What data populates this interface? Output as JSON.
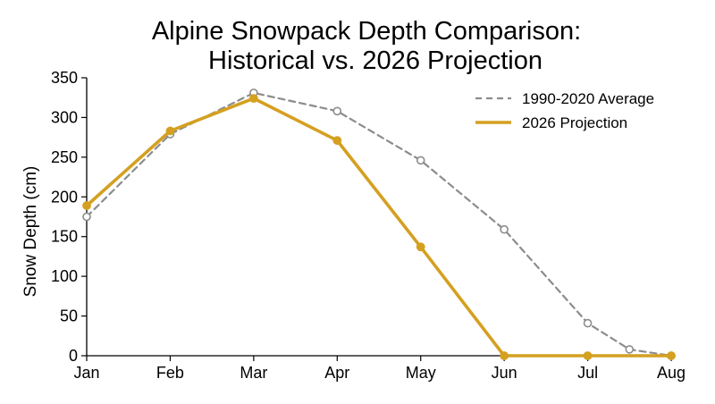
{
  "chart_data": {
    "type": "line",
    "title_line1": "Alpine Snowpack Depth Comparison:",
    "title_line2": "Historical vs. 2026 Projection",
    "xlabel": "",
    "ylabel": "Snow Depth (cm)",
    "x_tick_labels": [
      "Jan",
      "Feb",
      "Mar",
      "Apr",
      "May",
      "Jun",
      "Jul",
      "Aug"
    ],
    "xlim": [
      0,
      7
    ],
    "ylim": [
      0,
      350
    ],
    "y_ticks": [
      0,
      50,
      100,
      150,
      200,
      250,
      300,
      350
    ],
    "y_tick_labels": [
      "0",
      "50",
      "100",
      "150",
      "200",
      "250",
      "300",
      "350"
    ],
    "grid": false,
    "legend_position": "top-right",
    "series": [
      {
        "name": "1990-2020 Average",
        "style": "dashed",
        "color": "#8c8c8c",
        "marker": "open-circle",
        "x": [
          0,
          1,
          2,
          3,
          4,
          5,
          6,
          6.5,
          7
        ],
        "y": [
          175,
          279,
          331,
          308,
          246,
          159,
          41,
          8,
          0
        ]
      },
      {
        "name": "2026 Projection",
        "style": "solid",
        "color": "#d4a020",
        "marker": "filled-circle",
        "x": [
          0,
          1,
          2,
          3,
          4,
          5,
          6,
          7
        ],
        "y": [
          189,
          283,
          324,
          271,
          137,
          0,
          0,
          0
        ]
      }
    ]
  }
}
